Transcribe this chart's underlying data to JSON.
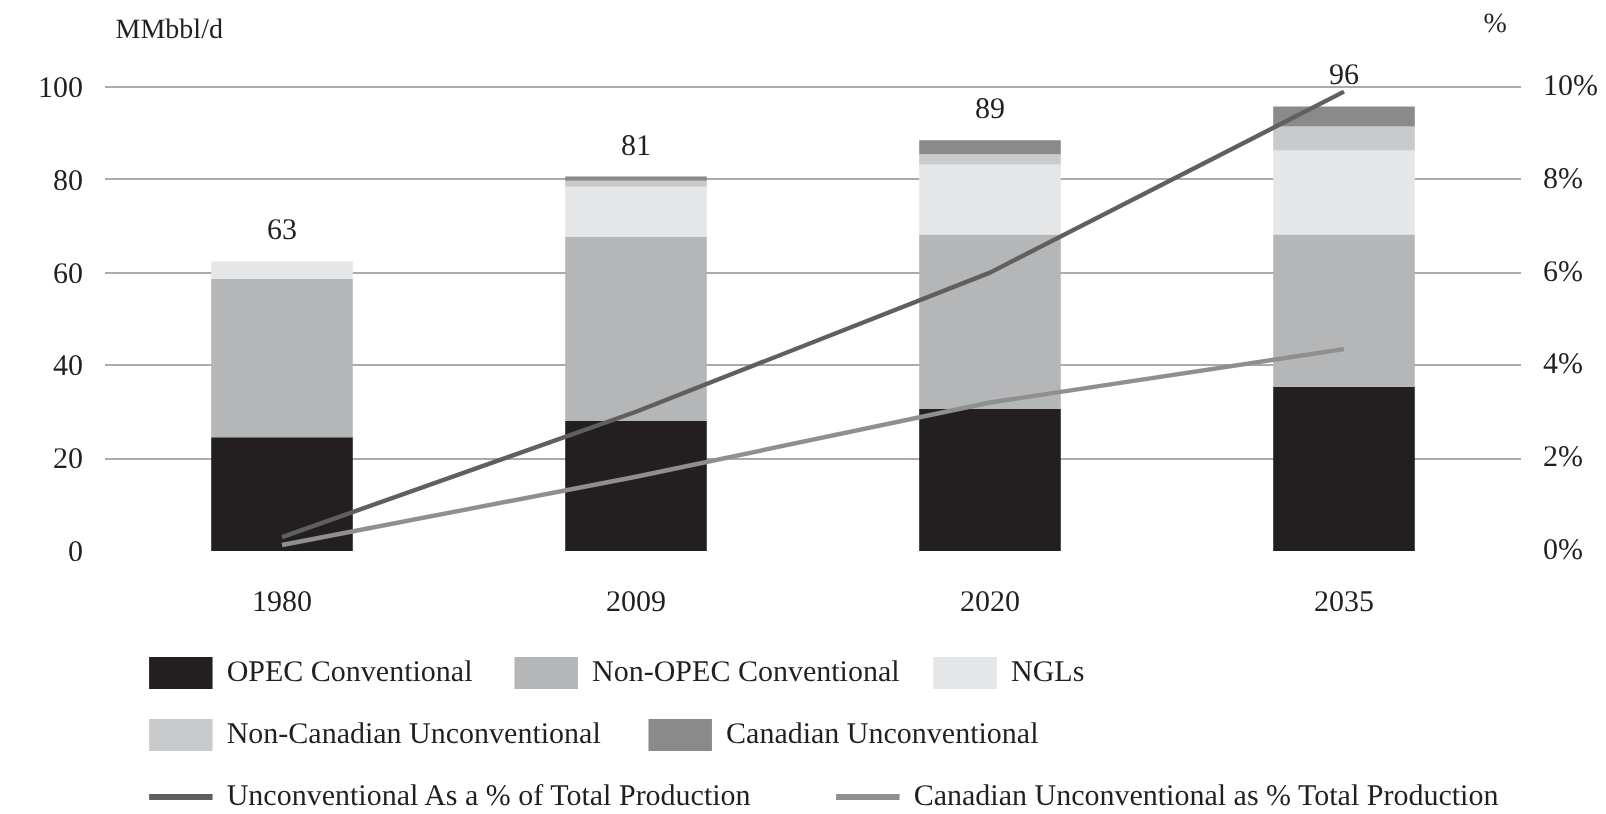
{
  "chart_data": {
    "type": "bar",
    "stacked": true,
    "categories": [
      "1980",
      "2009",
      "2020",
      "2035"
    ],
    "ylabel": "MMbbl/d",
    "y2label": "%",
    "ylim": [
      0,
      100
    ],
    "yticks": [
      0,
      20,
      40,
      60,
      80,
      100
    ],
    "y2lim": [
      0,
      10
    ],
    "y2ticks": [
      {
        "value": 0,
        "label": "0%"
      },
      {
        "value": 2,
        "label": "2%"
      },
      {
        "value": 4,
        "label": "4%"
      },
      {
        "value": 6,
        "label": "6%"
      },
      {
        "value": 8,
        "label": "8%"
      },
      {
        "value": 10,
        "label": "10%"
      }
    ],
    "grid": "y",
    "legend": "bottom",
    "totals": [
      "63",
      "81",
      "89",
      "96"
    ],
    "series": [
      {
        "name": "OPEC Conventional",
        "color": "#231f20",
        "values": [
          24.5,
          28.0,
          30.6,
          35.4
        ]
      },
      {
        "name": "Non-OPEC Conventional",
        "color": "#b5b6b8",
        "values": [
          34.2,
          39.8,
          37.6,
          32.8
        ]
      },
      {
        "name": "NGLs",
        "color": "#e5e6e7",
        "values": [
          3.7,
          10.7,
          15.1,
          18.1
        ]
      },
      {
        "name": "Non-Canadian Unconventional",
        "color": "#c9cacb",
        "values": [
          0,
          1.3,
          2.2,
          5.2
        ]
      },
      {
        "name": "Canadian Unconventional",
        "color": "#8a8a8b",
        "values": [
          0,
          0.9,
          3.0,
          4.3
        ]
      },
      {
        "name": "Unconventional As a % of Total Production",
        "type": "line",
        "axis": "y2",
        "color": "#5f5f60",
        "values": [
          0.3,
          3.0,
          6.0,
          9.9
        ]
      },
      {
        "name": "Canadian Unconventional as % Total Production",
        "type": "line",
        "axis": "y2",
        "color": "#8f8f90",
        "values": [
          0.13,
          1.6,
          3.2,
          4.35
        ]
      }
    ]
  }
}
